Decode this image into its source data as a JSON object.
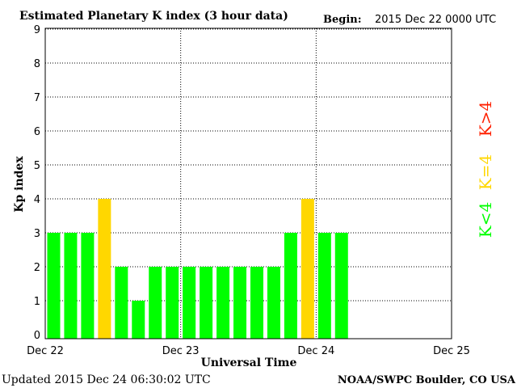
{
  "header": {
    "title": "Estimated Planetary K index (3 hour data)",
    "begin_label": "Begin:",
    "begin_value": "2015 Dec 22 0000 UTC"
  },
  "footer": {
    "updated": "Updated 2015 Dec 24 06:30:02 UTC",
    "source": "NOAA/SWPC Boulder, CO USA"
  },
  "colors": {
    "low": "#00ff00",
    "storm_threshold": "#ffd700",
    "high": "#ff2000"
  },
  "chart_data": {
    "type": "bar",
    "title": "Estimated Planetary K index (3 hour data)",
    "xlabel": "Universal Time",
    "ylabel": "Kp index",
    "ylim": [
      0,
      9
    ],
    "yticks": [
      "0",
      "1",
      "2",
      "3",
      "4",
      "5",
      "6",
      "7",
      "8",
      "9"
    ],
    "xlim": [
      0,
      24
    ],
    "xticks": [
      {
        "label": "Dec 22",
        "slot": 0
      },
      {
        "label": "Dec 23",
        "slot": 8
      },
      {
        "label": "Dec 24",
        "slot": 16
      },
      {
        "label": "Dec 25",
        "slot": 24
      }
    ],
    "grid": true,
    "values": [
      3,
      3,
      3,
      4,
      2,
      1,
      2,
      2,
      2,
      2,
      2,
      2,
      2,
      2,
      3,
      4,
      3,
      3
    ],
    "legend": [
      {
        "label": "K<4",
        "color": "#00ff00"
      },
      {
        "label": "K=4",
        "color": "#ffd700"
      },
      {
        "label": "K>4",
        "color": "#ff2000"
      }
    ],
    "legend_position": "right"
  }
}
